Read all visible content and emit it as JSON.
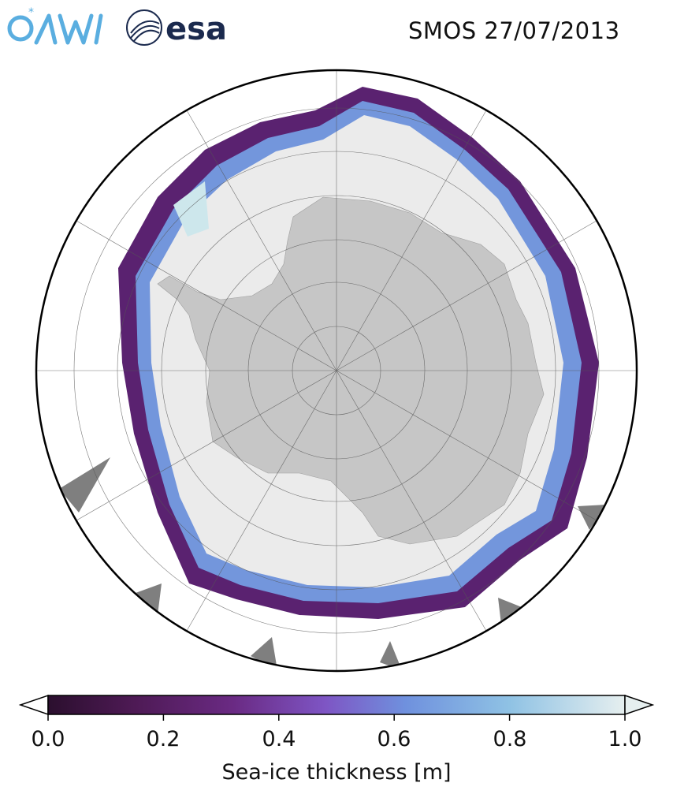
{
  "header": {
    "logos": [
      {
        "name": "AWI",
        "icon": "awi-logo",
        "color": "#5aaee0"
      },
      {
        "name": "esa",
        "icon": "esa-logo",
        "color": "#1b2a4e"
      }
    ],
    "title": "SMOS 27/07/2013"
  },
  "map": {
    "projection": "south-polar-stereographic",
    "graticule": true,
    "land_color": "#c6c6c6",
    "no_data_color": "#7f7f7f",
    "open_ocean_color": "#ffffff",
    "thick_ice_color": "#ebebeb"
  },
  "colorbar": {
    "label": "Sea-ice thickness [m]",
    "ticks": [
      "0.0",
      "0.2",
      "0.4",
      "0.6",
      "0.8",
      "1.0"
    ],
    "range": [
      0.0,
      1.0
    ],
    "extend": "both",
    "colormap": [
      "#2b0f2e",
      "#4e1a55",
      "#6a2a83",
      "#7e55c4",
      "#6f91de",
      "#8fc2e4",
      "#e6efef"
    ]
  }
}
